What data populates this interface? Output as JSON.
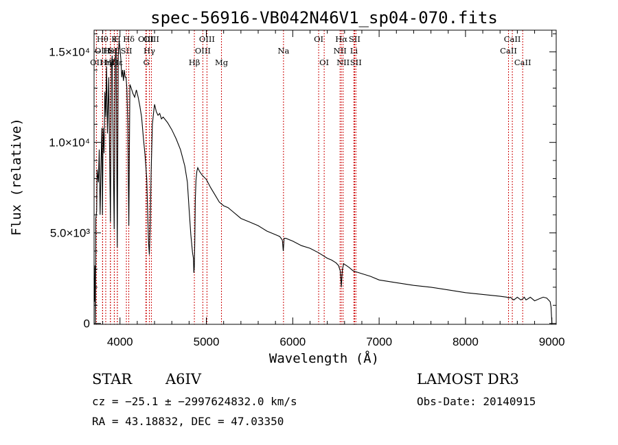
{
  "chart_data": {
    "type": "line",
    "title": "spec-56916-VB042N46V1_sp04-070.fits",
    "xlabel": "Wavelength (Å)",
    "ylabel": "Flux (relative)",
    "xlim": [
      3700,
      9050
    ],
    "ylim": [
      -50,
      16200
    ],
    "x_ticks": [
      {
        "value": 4000,
        "label": "4000"
      },
      {
        "value": 5000,
        "label": "5000"
      },
      {
        "value": 6000,
        "label": "6000"
      },
      {
        "value": 7000,
        "label": "7000"
      },
      {
        "value": 8000,
        "label": "8000"
      },
      {
        "value": 9000,
        "label": "9000"
      }
    ],
    "y_ticks": [
      {
        "value": 0,
        "label": "0"
      },
      {
        "value": 5000,
        "label": "5.0×10³"
      },
      {
        "value": 10000,
        "label": "1.0×10⁴"
      },
      {
        "value": 15000,
        "label": "1.5×10⁴"
      }
    ],
    "series": [
      {
        "name": "flux",
        "x": [
          3700,
          3705,
          3710,
          3715,
          3720,
          3730,
          3735,
          3750,
          3760,
          3770,
          3780,
          3790,
          3797,
          3805,
          3815,
          3825,
          3835,
          3845,
          3855,
          3870,
          3880,
          3889,
          3900,
          3910,
          3920,
          3933,
          3945,
          3955,
          3969,
          3980,
          3990,
          4000,
          4010,
          4020,
          4030,
          4040,
          4050,
          4060,
          4070,
          4080,
          4090,
          4102,
          4115,
          4130,
          4150,
          4170,
          4190,
          4210,
          4230,
          4250,
          4270,
          4290,
          4310,
          4320,
          4330,
          4340,
          4350,
          4360,
          4375,
          4390,
          4400,
          4420,
          4440,
          4460,
          4480,
          4500,
          4550,
          4600,
          4650,
          4700,
          4750,
          4780,
          4800,
          4820,
          4840,
          4850,
          4855,
          4861,
          4866,
          4872,
          4880,
          4890,
          4900,
          4920,
          4950,
          5000,
          5050,
          5100,
          5150,
          5200,
          5250,
          5300,
          5400,
          5500,
          5600,
          5700,
          5800,
          5850,
          5880,
          5890,
          5896,
          5900,
          5920,
          6000,
          6100,
          6200,
          6300,
          6400,
          6450,
          6500,
          6530,
          6550,
          6558,
          6563,
          6568,
          6575,
          6590,
          6620,
          6650,
          6700,
          6800,
          6900,
          7000,
          7200,
          7400,
          7600,
          7800,
          8000,
          8200,
          8400,
          8480,
          8500,
          8520,
          8542,
          8560,
          8600,
          8640,
          8662,
          8680,
          8700,
          8720,
          8750,
          8800,
          8850,
          8900,
          8940,
          8960,
          8980,
          8990,
          9000
        ],
        "values": [
          2500,
          1200,
          3200,
          0,
          5800,
          6200,
          8500,
          7800,
          9600,
          6000,
          8800,
          10800,
          6000,
          10800,
          9400,
          12800,
          11400,
          14200,
          10500,
          13600,
          9400,
          5600,
          14200,
          14800,
          10200,
          5200,
          14600,
          15200,
          4200,
          14800,
          15600,
          15200,
          14600,
          13600,
          14000,
          13400,
          14000,
          13600,
          13600,
          13000,
          11000,
          5400,
          13200,
          13000,
          12700,
          12500,
          12900,
          12500,
          12000,
          11400,
          10300,
          9300,
          8000,
          6200,
          4500,
          3800,
          5500,
          8200,
          11000,
          11700,
          12100,
          11700,
          11500,
          11600,
          11300,
          11400,
          11100,
          10700,
          10200,
          9600,
          8700,
          7800,
          6300,
          4900,
          3900,
          3600,
          2800,
          3100,
          4600,
          6800,
          7900,
          8400,
          8600,
          8400,
          8200,
          7950,
          7500,
          7100,
          6700,
          6500,
          6400,
          6200,
          5800,
          5600,
          5400,
          5100,
          4900,
          4800,
          4600,
          4000,
          4350,
          4700,
          4700,
          4550,
          4300,
          4150,
          3900,
          3600,
          3500,
          3350,
          3200,
          2900,
          2400,
          2000,
          2500,
          3000,
          3300,
          3200,
          3100,
          2900,
          2750,
          2600,
          2400,
          2250,
          2100,
          2000,
          1850,
          1700,
          1600,
          1500,
          1450,
          1400,
          1450,
          1350,
          1300,
          1450,
          1300,
          1350,
          1450,
          1300,
          1350,
          1450,
          1250,
          1350,
          1450,
          1400,
          1300,
          1200,
          900,
          0
        ]
      }
    ],
    "spectral_lines": [
      {
        "name": "OII",
        "wavelength": 3727,
        "row": 2
      },
      {
        "name": "Hθ",
        "wavelength": 3798,
        "row": 0
      },
      {
        "name": "OIII",
        "wavelength": 3799,
        "row": 1
      },
      {
        "name": "Hη",
        "wavelength": 3835,
        "row": 2
      },
      {
        "name": "HeI",
        "wavelength": 3889,
        "row": 1
      },
      {
        "name": "Hζ",
        "wavelength": 3889,
        "row": 2
      },
      {
        "name": "SII",
        "wavelength": 3934,
        "row": 1
      },
      {
        "name": "K",
        "wavelength": 3934,
        "row": 0
      },
      {
        "name": "H",
        "wavelength": 3969,
        "row": 0
      },
      {
        "name": "Hε",
        "wavelength": 3970,
        "row": 2
      },
      {
        "name": "Hδ",
        "wavelength": 4102,
        "row": 0
      },
      {
        "name": "SII",
        "wavelength": 4074,
        "row": 1
      },
      {
        "name": "OIII",
        "wavelength": 4300,
        "row": 0
      },
      {
        "name": "Hγ",
        "wavelength": 4340,
        "row": 1
      },
      {
        "name": "G",
        "wavelength": 4305,
        "row": 2
      },
      {
        "name": "OIII",
        "wavelength": 4363,
        "row": 0
      },
      {
        "name": "Hβ",
        "wavelength": 4861,
        "row": 2
      },
      {
        "name": "OIII",
        "wavelength": 4959,
        "row": 1
      },
      {
        "name": "OIII",
        "wavelength": 5007,
        "row": 0
      },
      {
        "name": "Mg",
        "wavelength": 5175,
        "row": 2
      },
      {
        "name": "Na",
        "wavelength": 5893,
        "row": 1
      },
      {
        "name": "OI",
        "wavelength": 6300,
        "row": 0
      },
      {
        "name": "OI",
        "wavelength": 6364,
        "row": 2
      },
      {
        "name": "NII",
        "wavelength": 6548,
        "row": 1
      },
      {
        "name": "Hα",
        "wavelength": 6563,
        "row": 0
      },
      {
        "name": "NII",
        "wavelength": 6583,
        "row": 2
      },
      {
        "name": "SII",
        "wavelength": 6716,
        "row": 0
      },
      {
        "name": "Li",
        "wavelength": 6708,
        "row": 1
      },
      {
        "name": "SII",
        "wavelength": 6731,
        "row": 2
      },
      {
        "name": "CaII",
        "wavelength": 8498,
        "row": 1
      },
      {
        "name": "CaII",
        "wavelength": 8542,
        "row": 0
      },
      {
        "name": "CaII",
        "wavelength": 8662,
        "row": 2
      }
    ],
    "grid": false,
    "line_color": "#000000",
    "marker_color": "#cc0000"
  },
  "info": {
    "object_type": "STAR",
    "subclass": "A6IV",
    "survey": "LAMOST DR3",
    "cz": "cz = −25.1 ± −2997624832.0 km/s",
    "obs_date": "Obs-Date: 20140915",
    "coords": "RA =  43.18832, DEC =  47.03350"
  }
}
